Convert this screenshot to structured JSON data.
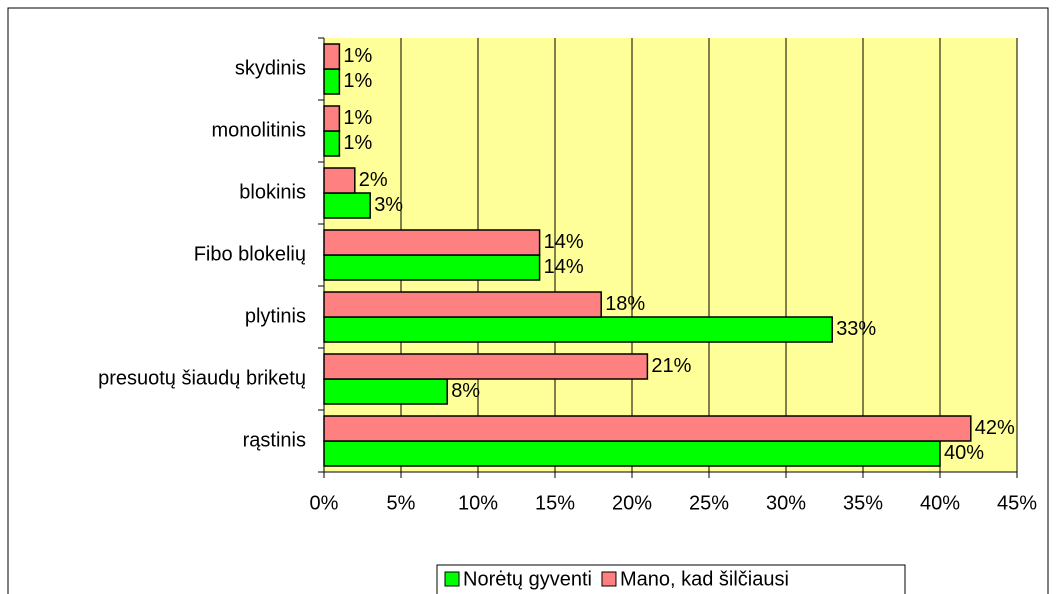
{
  "chart_data": {
    "type": "bar",
    "orientation": "horizontal",
    "categories": [
      "skydinis",
      "monolitinis",
      "blokinis",
      "Fibo blokelių",
      "plytinis",
      "presuotų šiaudų briketų",
      "rąstinis"
    ],
    "series": [
      {
        "name": "Norėtų gyventi",
        "color": "#00ff00",
        "values": [
          1,
          1,
          3,
          14,
          33,
          8,
          40
        ],
        "value_labels": [
          "1%",
          "1%",
          "3%",
          "14%",
          "33%",
          "8%",
          "40%"
        ]
      },
      {
        "name": "Mano, kad šilčiausi",
        "color": "#ff8080",
        "values": [
          1,
          1,
          2,
          14,
          18,
          21,
          42
        ],
        "value_labels": [
          "1%",
          "1%",
          "2%",
          "14%",
          "18%",
          "21%",
          "42%"
        ]
      }
    ],
    "xlim": [
      0,
      45
    ],
    "xticks": [
      {
        "value": 0,
        "label": "0%"
      },
      {
        "value": 5,
        "label": "5%"
      },
      {
        "value": 10,
        "label": "10%"
      },
      {
        "value": 15,
        "label": "15%"
      },
      {
        "value": 20,
        "label": "20%"
      },
      {
        "value": 25,
        "label": "25%"
      },
      {
        "value": 30,
        "label": "30%"
      },
      {
        "value": 35,
        "label": "35%"
      },
      {
        "value": 40,
        "label": "40%"
      },
      {
        "value": 45,
        "label": "45%"
      }
    ],
    "grid": true,
    "plot_background": "#ffff99",
    "legend": "bottom"
  }
}
